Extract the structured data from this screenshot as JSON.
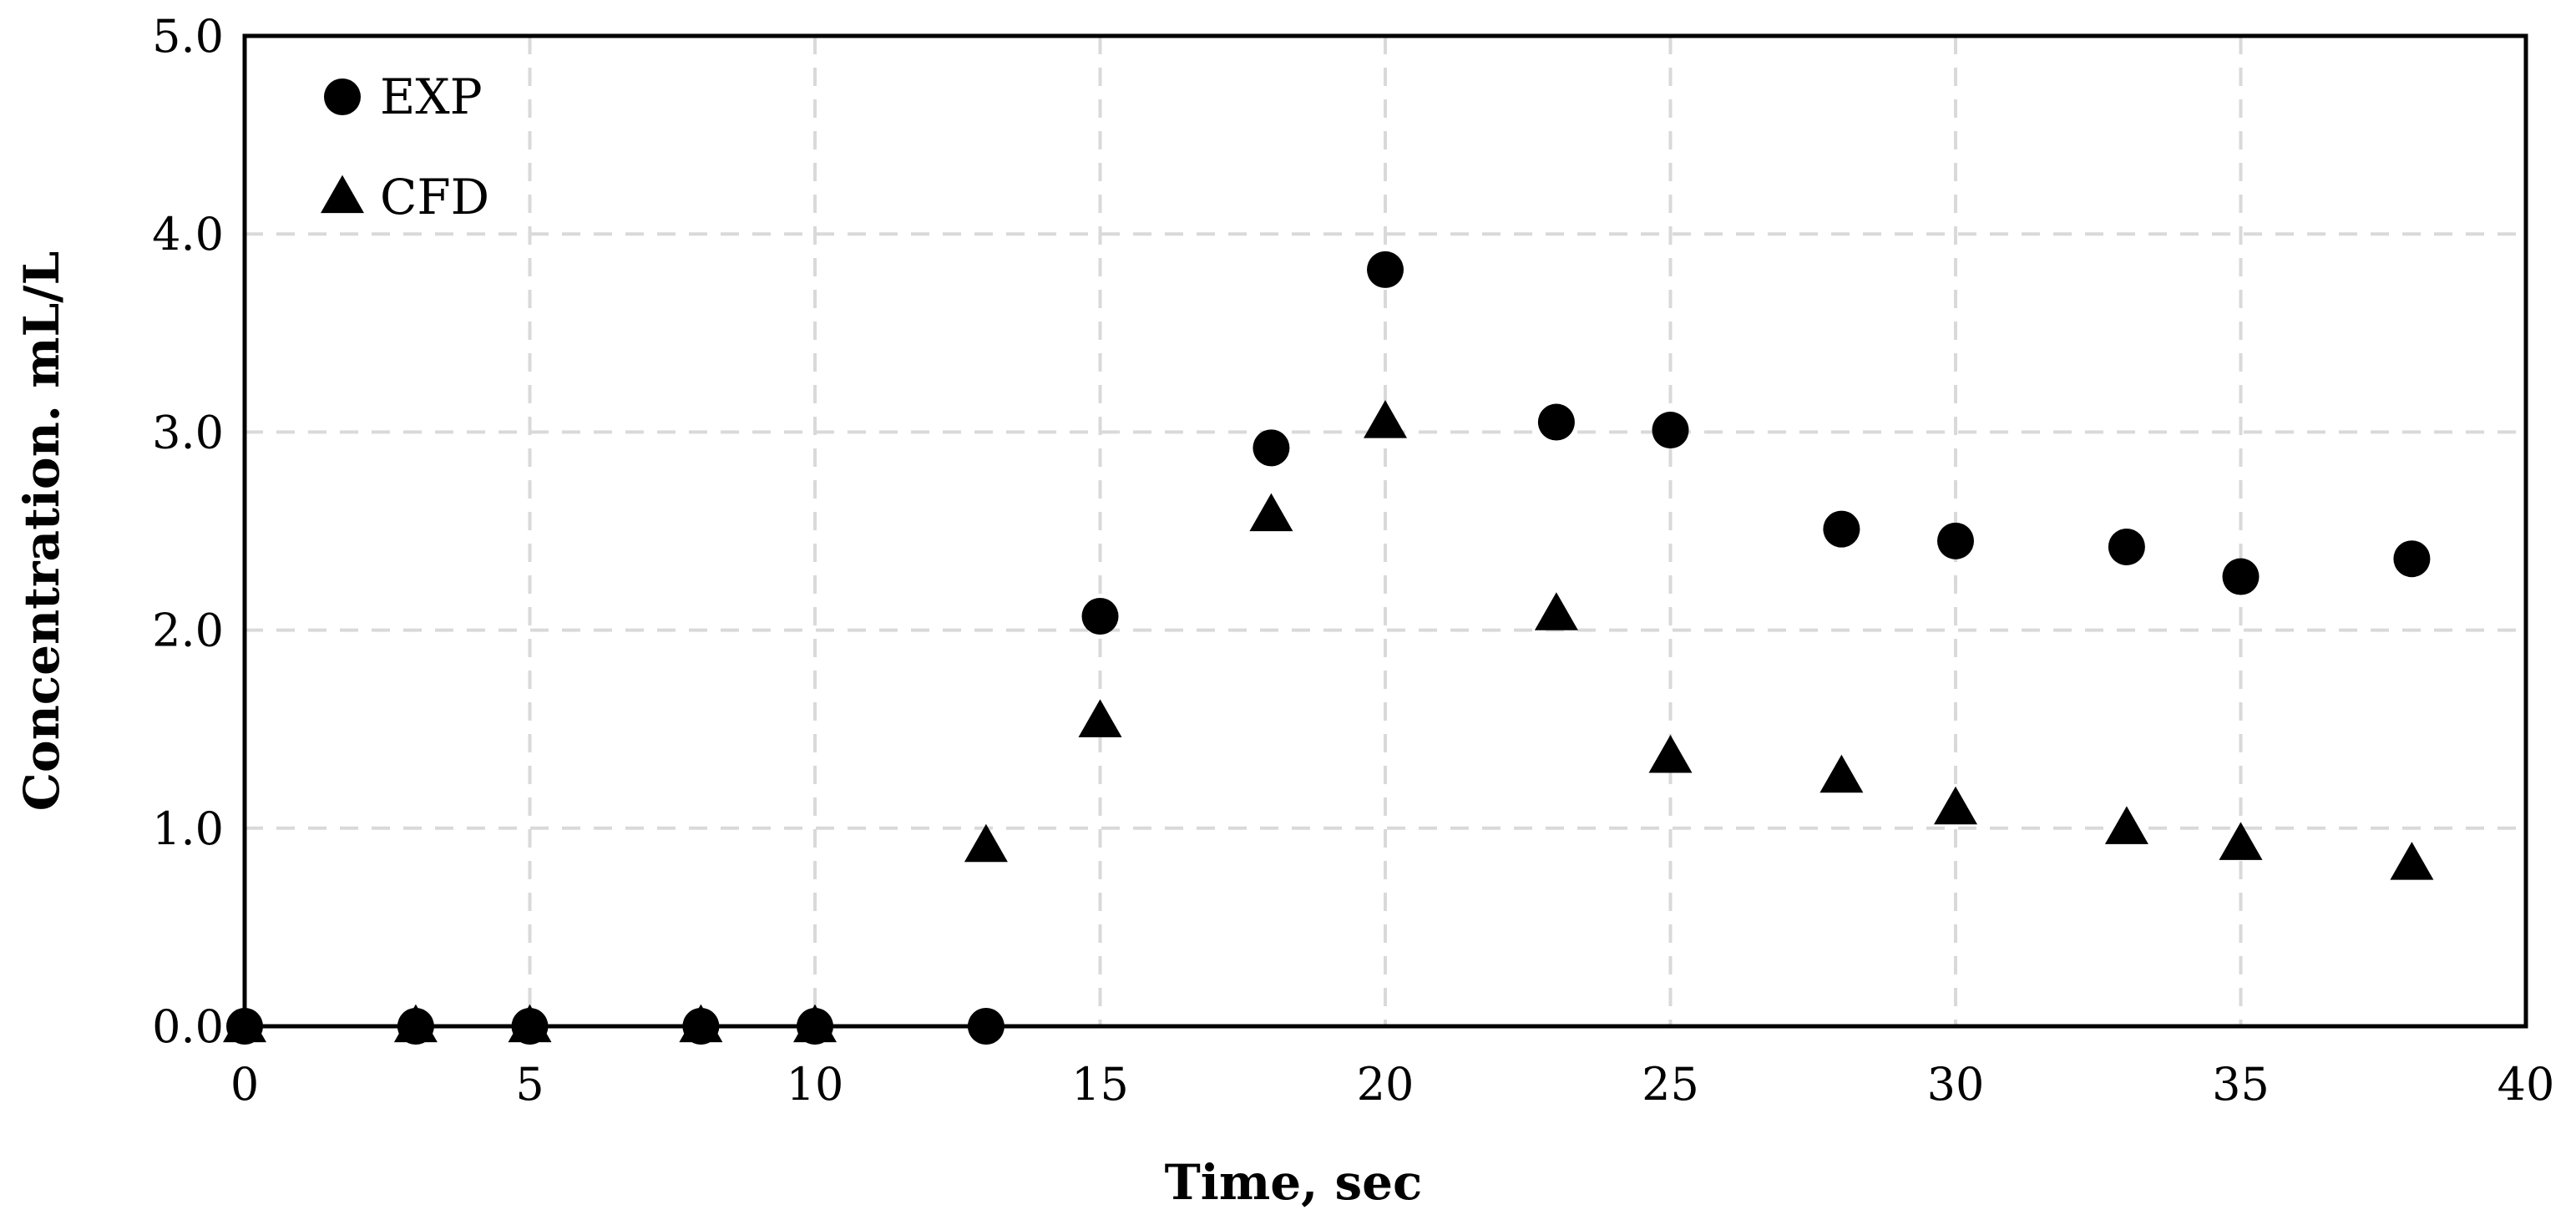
{
  "chart_data": {
    "type": "scatter",
    "title": "",
    "xlabel": "Time, sec",
    "ylabel": "Concentration. mL/L",
    "xlim": [
      0,
      40
    ],
    "ylim": [
      0.0,
      5.0
    ],
    "x_ticks": [
      "0",
      "5",
      "10",
      "15",
      "20",
      "25",
      "30",
      "35",
      "40"
    ],
    "y_ticks": [
      "0.0",
      "1.0",
      "2.0",
      "3.0",
      "4.0",
      "5.0"
    ],
    "grid": true,
    "grid_style": "dashed",
    "legend_position": "top-left",
    "series": [
      {
        "name": "EXP",
        "marker": "circle",
        "color": "#000000",
        "points": [
          {
            "x": 0,
            "y": 0.0
          },
          {
            "x": 3,
            "y": 0.0
          },
          {
            "x": 5,
            "y": 0.0
          },
          {
            "x": 8,
            "y": 0.0
          },
          {
            "x": 10,
            "y": 0.0
          },
          {
            "x": 13,
            "y": 0.0
          },
          {
            "x": 15,
            "y": 2.07
          },
          {
            "x": 18,
            "y": 2.92
          },
          {
            "x": 20,
            "y": 3.82
          },
          {
            "x": 23,
            "y": 3.05
          },
          {
            "x": 25,
            "y": 3.01
          },
          {
            "x": 28,
            "y": 2.51
          },
          {
            "x": 30,
            "y": 2.45
          },
          {
            "x": 33,
            "y": 2.42
          },
          {
            "x": 35,
            "y": 2.27
          },
          {
            "x": 38,
            "y": 2.36
          }
        ]
      },
      {
        "name": "CFD",
        "marker": "triangle",
        "color": "#000000",
        "points": [
          {
            "x": 0,
            "y": 0.0
          },
          {
            "x": 3,
            "y": 0.0
          },
          {
            "x": 5,
            "y": 0.0
          },
          {
            "x": 8,
            "y": 0.0
          },
          {
            "x": 10,
            "y": 0.0
          },
          {
            "x": 13,
            "y": 0.91
          },
          {
            "x": 15,
            "y": 1.54
          },
          {
            "x": 18,
            "y": 2.58
          },
          {
            "x": 20,
            "y": 3.05
          },
          {
            "x": 23,
            "y": 2.08
          },
          {
            "x": 25,
            "y": 1.36
          },
          {
            "x": 28,
            "y": 1.26
          },
          {
            "x": 30,
            "y": 1.1
          },
          {
            "x": 33,
            "y": 1.0
          },
          {
            "x": 35,
            "y": 0.92
          },
          {
            "x": 38,
            "y": 0.82
          }
        ]
      }
    ]
  }
}
